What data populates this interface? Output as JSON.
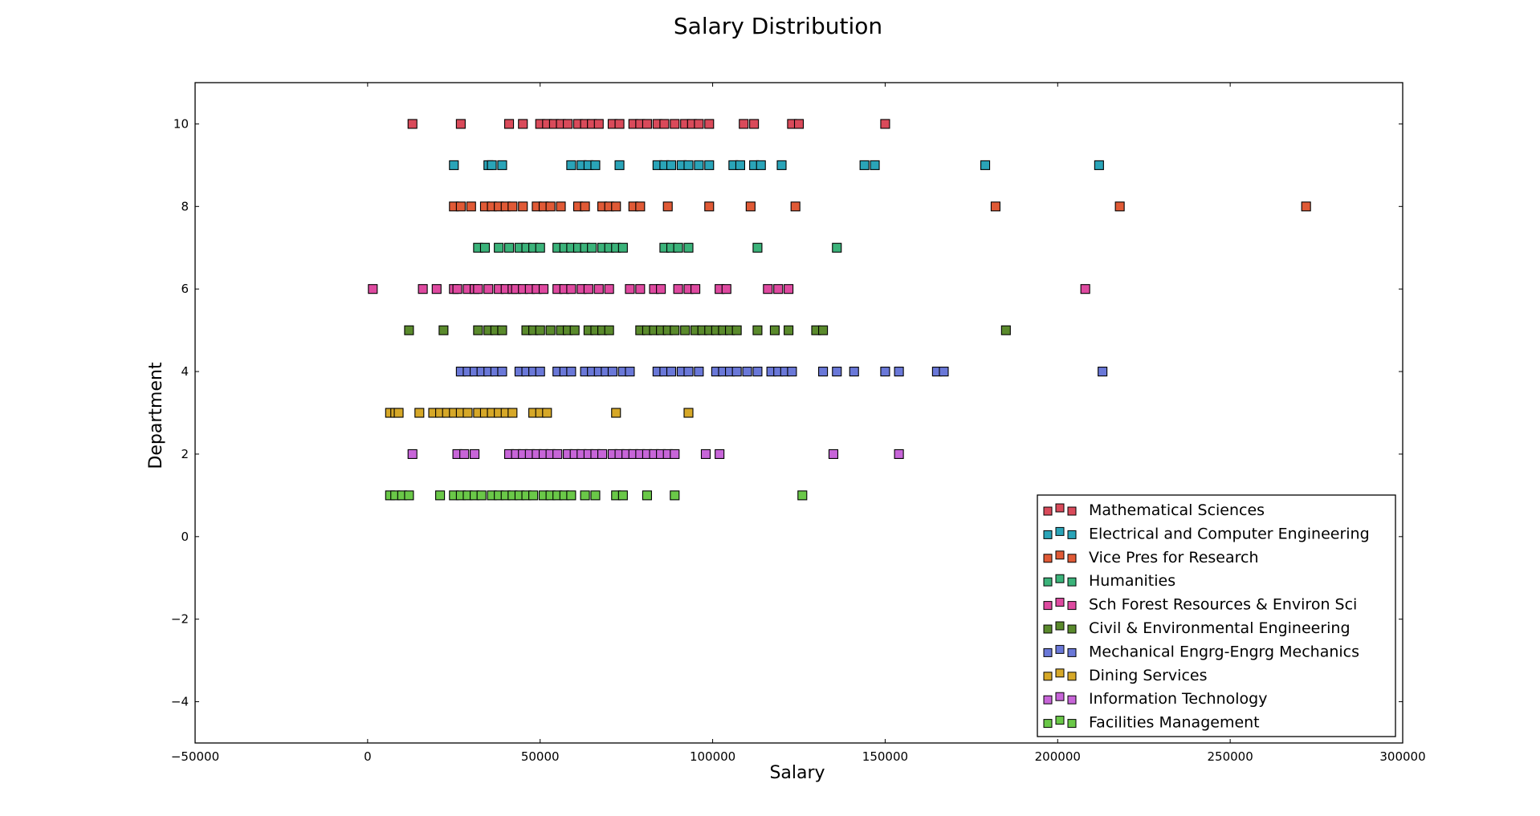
{
  "chart_data": {
    "type": "scatter",
    "title": "Salary Distribution",
    "xlabel": "Salary",
    "ylabel": "Department",
    "xlim": [
      -50000,
      300000
    ],
    "ylim": [
      -5,
      11
    ],
    "xticks": [
      -50000,
      0,
      50000,
      100000,
      150000,
      200000,
      250000,
      300000
    ],
    "xtick_labels": [
      "−50000",
      "0",
      "50000",
      "100000",
      "150000",
      "200000",
      "250000",
      "300000"
    ],
    "yticks": [
      -4,
      -2,
      0,
      2,
      4,
      6,
      8,
      10
    ],
    "ytick_labels": [
      "−4",
      "−2",
      "0",
      "2",
      "4",
      "6",
      "8",
      "10"
    ],
    "grid": false,
    "legend_position": "lower-right",
    "marker": "square",
    "series": [
      {
        "name": "Mathematical Sciences",
        "color": "#d94a5a",
        "y": 10,
        "x": [
          13000,
          27000,
          41000,
          45000,
          50000,
          52000,
          54000,
          56000,
          58000,
          61000,
          63000,
          65000,
          67000,
          71000,
          73000,
          77000,
          79000,
          81000,
          84000,
          86000,
          89000,
          92000,
          94000,
          96000,
          99000,
          109000,
          112000,
          123000,
          125000,
          150000
        ]
      },
      {
        "name": "Electrical and Computer Engineering",
        "color": "#2aa4b8",
        "y": 9,
        "x": [
          25000,
          35000,
          36000,
          39000,
          59000,
          62000,
          64000,
          66000,
          73000,
          84000,
          86000,
          88000,
          91000,
          93000,
          96000,
          99000,
          106000,
          108000,
          112000,
          114000,
          120000,
          144000,
          147000,
          179000,
          212000
        ]
      },
      {
        "name": "Vice Pres for Research",
        "color": "#e05a36",
        "y": 8,
        "x": [
          25000,
          27000,
          30000,
          34000,
          36000,
          38000,
          40000,
          42000,
          45000,
          49000,
          51000,
          53000,
          56000,
          61000,
          63000,
          68000,
          70000,
          72000,
          77000,
          79000,
          87000,
          99000,
          111000,
          124000,
          182000,
          218000,
          272000
        ]
      },
      {
        "name": "Humanities",
        "color": "#3bb37a",
        "y": 7,
        "x": [
          32000,
          34000,
          38000,
          41000,
          44000,
          46000,
          48000,
          50000,
          55000,
          57000,
          59000,
          61000,
          63000,
          65000,
          68000,
          70000,
          72000,
          74000,
          86000,
          88000,
          90000,
          93000,
          113000,
          136000
        ]
      },
      {
        "name": "Sch Forest Resources & Environ Sci",
        "color": "#de4aa0",
        "y": 6,
        "x": [
          1500,
          16000,
          20000,
          25000,
          26000,
          29000,
          31000,
          32000,
          35000,
          38000,
          40000,
          42000,
          43000,
          45000,
          47000,
          49000,
          51000,
          55000,
          57000,
          59000,
          62000,
          64000,
          67000,
          70000,
          76000,
          79000,
          83000,
          85000,
          90000,
          93000,
          95000,
          102000,
          104000,
          116000,
          119000,
          122000,
          208000
        ]
      },
      {
        "name": "Civil & Environmental Engineering",
        "color": "#5a8a2c",
        "y": 5,
        "x": [
          12000,
          22000,
          32000,
          35000,
          37000,
          39000,
          46000,
          48000,
          50000,
          53000,
          56000,
          58000,
          60000,
          64000,
          66000,
          68000,
          70000,
          79000,
          81000,
          83000,
          85000,
          87000,
          89000,
          92000,
          95000,
          97000,
          99000,
          101000,
          103000,
          105000,
          107000,
          113000,
          118000,
          122000,
          130000,
          132000,
          185000
        ]
      },
      {
        "name": "Mechanical Engrg-Engrg Mechanics",
        "color": "#6a78d8",
        "y": 4,
        "x": [
          27000,
          29000,
          31000,
          33000,
          35000,
          37000,
          39000,
          44000,
          46000,
          48000,
          50000,
          55000,
          57000,
          59000,
          63000,
          65000,
          67000,
          69000,
          71000,
          74000,
          76000,
          84000,
          86000,
          88000,
          91000,
          93000,
          96000,
          101000,
          103000,
          105000,
          107000,
          110000,
          113000,
          117000,
          119000,
          121000,
          123000,
          132000,
          136000,
          141000,
          150000,
          154000,
          165000,
          167000,
          213000
        ]
      },
      {
        "name": "Dining Services",
        "color": "#d6a828",
        "y": 3,
        "x": [
          6500,
          8000,
          9000,
          15000,
          19000,
          21000,
          23000,
          25000,
          27000,
          29000,
          32000,
          34000,
          36000,
          38000,
          40000,
          42000,
          48000,
          50000,
          52000,
          72000,
          93000
        ]
      },
      {
        "name": "Information Technology",
        "color": "#c765d8",
        "y": 2,
        "x": [
          13000,
          26000,
          28000,
          31000,
          41000,
          43000,
          45000,
          47000,
          49000,
          51000,
          53000,
          55000,
          58000,
          60000,
          62000,
          64000,
          66000,
          68000,
          71000,
          73000,
          75000,
          77000,
          79000,
          81000,
          83000,
          85000,
          87000,
          89000,
          98000,
          102000,
          135000,
          154000
        ]
      },
      {
        "name": "Facilities Management",
        "color": "#6ac848",
        "y": 1,
        "x": [
          6500,
          8000,
          10000,
          12000,
          21000,
          25000,
          27000,
          29000,
          31000,
          33000,
          36000,
          38000,
          40000,
          42000,
          44000,
          46000,
          48000,
          51000,
          53000,
          55000,
          57000,
          59000,
          63000,
          66000,
          72000,
          74000,
          81000,
          89000,
          126000
        ]
      }
    ]
  }
}
